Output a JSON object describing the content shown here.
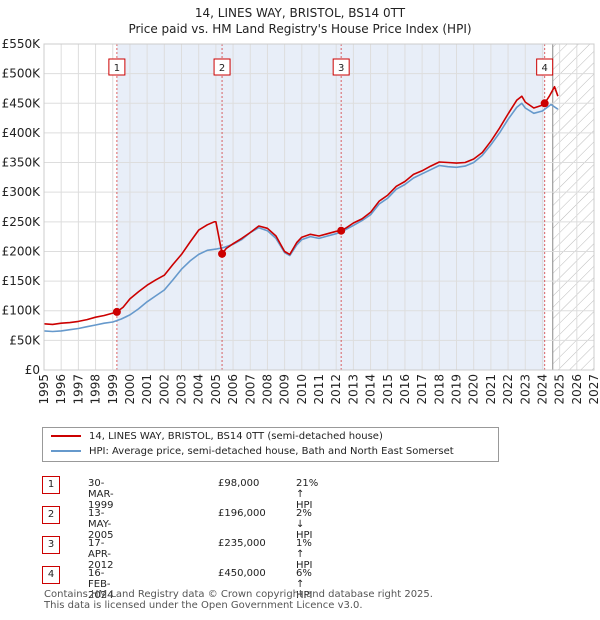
{
  "header": {
    "title": "14, LINES WAY, BRISTOL, BS14 0TT",
    "subtitle": "Price paid vs. HM Land Registry's House Price Index (HPI)"
  },
  "colors": {
    "property": "#cc0000",
    "hpi": "#6699cc",
    "shade": "#e8eef8",
    "marker_border": "#cc0000"
  },
  "chart_data": {
    "type": "line",
    "title": "Price paid vs. HM Land Registry's House Price Index (HPI)",
    "xlabel": "",
    "ylabel": "",
    "xlim": [
      1995,
      2027
    ],
    "ylim": [
      0,
      550000
    ],
    "x_ticks": [
      "1995",
      "1996",
      "1997",
      "1998",
      "1999",
      "2000",
      "2001",
      "2002",
      "2003",
      "2004",
      "2005",
      "2006",
      "2007",
      "2008",
      "2009",
      "2010",
      "2011",
      "2012",
      "2013",
      "2014",
      "2015",
      "2016",
      "2017",
      "2018",
      "2019",
      "2020",
      "2021",
      "2022",
      "2023",
      "2024",
      "2025",
      "2026",
      "2027"
    ],
    "y_ticks": [
      {
        "value": 0,
        "label": "£0"
      },
      {
        "value": 50000,
        "label": "£50K"
      },
      {
        "value": 100000,
        "label": "£100K"
      },
      {
        "value": 150000,
        "label": "£150K"
      },
      {
        "value": 200000,
        "label": "£200K"
      },
      {
        "value": 250000,
        "label": "£250K"
      },
      {
        "value": 300000,
        "label": "£300K"
      },
      {
        "value": 350000,
        "label": "£350K"
      },
      {
        "value": 400000,
        "label": "£400K"
      },
      {
        "value": 450000,
        "label": "£450K"
      },
      {
        "value": 500000,
        "label": "£500K"
      },
      {
        "value": 550000,
        "label": "£550K"
      }
    ],
    "future_start": 2024.6,
    "series": [
      {
        "name": "14, LINES WAY, BRISTOL, BS14 0TT (semi-detached house)",
        "x": [
          1995.0,
          1995.5,
          1996.0,
          1996.5,
          1997.0,
          1997.5,
          1998.0,
          1998.5,
          1999.0,
          1999.24,
          1999.6,
          2000.0,
          2000.5,
          2001.0,
          2001.5,
          2002.0,
          2002.5,
          2003.0,
          2003.5,
          2004.0,
          2004.5,
          2004.9,
          2005.0,
          2005.36,
          2005.6,
          2006.0,
          2006.5,
          2007.0,
          2007.5,
          2008.0,
          2008.5,
          2009.0,
          2009.3,
          2009.7,
          2010.0,
          2010.5,
          2011.0,
          2011.5,
          2012.0,
          2012.29,
          2012.6,
          2013.0,
          2013.5,
          2014.0,
          2014.5,
          2015.0,
          2015.5,
          2016.0,
          2016.5,
          2017.0,
          2017.5,
          2018.0,
          2018.5,
          2019.0,
          2019.5,
          2020.0,
          2020.5,
          2021.0,
          2021.5,
          2022.0,
          2022.5,
          2022.8,
          2023.0,
          2023.5,
          2024.0,
          2024.13,
          2024.4,
          2024.7,
          2024.9
        ],
        "values": [
          78000,
          77000,
          79000,
          80000,
          82000,
          85000,
          89000,
          92000,
          96000,
          98000,
          106000,
          120000,
          132000,
          143000,
          152000,
          160000,
          178000,
          195000,
          216000,
          236000,
          245000,
          250000,
          250000,
          196000,
          205000,
          213000,
          222000,
          232000,
          243000,
          239000,
          226000,
          200000,
          195000,
          215000,
          224000,
          229000,
          226000,
          230000,
          234000,
          235000,
          240000,
          248000,
          255000,
          266000,
          285000,
          295000,
          310000,
          318000,
          330000,
          336000,
          344000,
          351000,
          350000,
          349000,
          350000,
          356000,
          367000,
          386000,
          408000,
          432000,
          455000,
          462000,
          452000,
          442000,
          447000,
          450000,
          462000,
          478000,
          462000
        ]
      },
      {
        "name": "HPI: Average price, semi-detached house, Bath and North East Somerset",
        "x": [
          1995.0,
          1995.5,
          1996.0,
          1996.5,
          1997.0,
          1997.5,
          1998.0,
          1998.5,
          1999.0,
          1999.5,
          2000.0,
          2000.5,
          2001.0,
          2001.5,
          2002.0,
          2002.5,
          2003.0,
          2003.5,
          2004.0,
          2004.5,
          2005.0,
          2005.5,
          2006.0,
          2006.5,
          2007.0,
          2007.5,
          2008.0,
          2008.5,
          2009.0,
          2009.3,
          2009.7,
          2010.0,
          2010.5,
          2011.0,
          2011.5,
          2012.0,
          2012.5,
          2013.0,
          2013.5,
          2014.0,
          2014.5,
          2015.0,
          2015.5,
          2016.0,
          2016.5,
          2017.0,
          2017.5,
          2018.0,
          2018.5,
          2019.0,
          2019.5,
          2020.0,
          2020.5,
          2021.0,
          2021.5,
          2022.0,
          2022.5,
          2022.8,
          2023.0,
          2023.5,
          2024.0,
          2024.5,
          2024.9
        ],
        "values": [
          66000,
          65000,
          66000,
          68000,
          70000,
          73000,
          76000,
          79000,
          81000,
          86000,
          93000,
          103000,
          115000,
          125000,
          135000,
          152000,
          170000,
          184000,
          195000,
          202000,
          204000,
          207000,
          212000,
          220000,
          232000,
          240000,
          235000,
          222000,
          198000,
          193000,
          211000,
          220000,
          225000,
          222000,
          226000,
          230000,
          236000,
          244000,
          252000,
          262000,
          280000,
          290000,
          305000,
          313000,
          324000,
          331000,
          338000,
          345000,
          343000,
          342000,
          344000,
          350000,
          362000,
          380000,
          400000,
          423000,
          443000,
          450000,
          442000,
          433000,
          437000,
          448000,
          440000
        ]
      }
    ],
    "sales": [
      {
        "num": "1",
        "x": 1999.24,
        "value": 98000
      },
      {
        "num": "2",
        "x": 2005.36,
        "value": 196000
      },
      {
        "num": "3",
        "x": 2012.29,
        "value": 235000
      },
      {
        "num": "4",
        "x": 2024.13,
        "value": 450000
      }
    ]
  },
  "legend": {
    "property_label": "14, LINES WAY, BRISTOL, BS14 0TT (semi-detached house)",
    "hpi_label": "HPI: Average price, semi-detached house, Bath and North East Somerset"
  },
  "sales_table": [
    {
      "num": "1",
      "date": "30-MAR-1999",
      "price": "£98,000",
      "hpi": "21% ↑ HPI"
    },
    {
      "num": "2",
      "date": "13-MAY-2005",
      "price": "£196,000",
      "hpi": "2% ↓ HPI"
    },
    {
      "num": "3",
      "date": "17-APR-2012",
      "price": "£235,000",
      "hpi": "1% ↑ HPI"
    },
    {
      "num": "4",
      "date": "16-FEB-2024",
      "price": "£450,000",
      "hpi": "6% ↑ HPI"
    }
  ],
  "footer": {
    "line1": "Contains HM Land Registry data © Crown copyright and database right 2025.",
    "line2": "This data is licensed under the Open Government Licence v3.0."
  }
}
